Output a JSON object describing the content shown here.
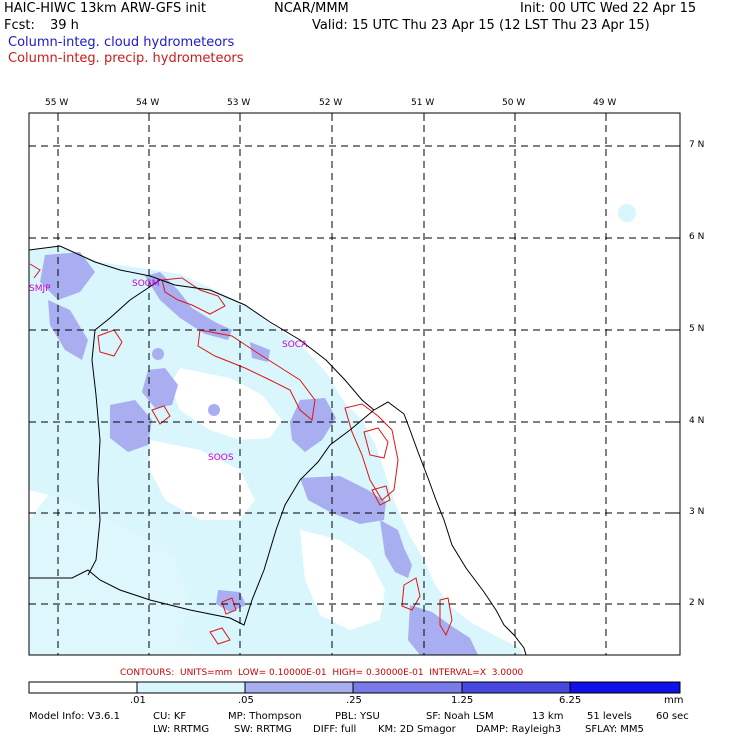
{
  "header": {
    "title_left": "HAIC-HIWC 13km ARW-GFS init",
    "org": "NCAR/MMM",
    "init": "Init: 00 UTC Wed 22 Apr 15",
    "fcst_label": "Fcst:",
    "fcst_value": "39 h",
    "valid": "Valid: 15 UTC Thu 23 Apr 15 (12 LST Thu 23 Apr 15)",
    "field1": "Column-integ. cloud hydrometeors",
    "field2": "Column-integ. precip. hydrometeors"
  },
  "map": {
    "longitude_labels": [
      "55 W",
      "54 W",
      "53 W",
      "52 W",
      "51 W",
      "50 W",
      "49 W"
    ],
    "latitude_labels": [
      "7 N",
      "6 N",
      "5 N",
      "4 N",
      "3 N",
      "2 N"
    ],
    "stations": [
      "SMJP",
      "SOGM",
      "SOCA",
      "SOOS"
    ]
  },
  "contours_line": "CONTOURS:  UNITS=mm  LOW= 0.10000E-01  HIGH= 0.30000E-01  INTERVAL=X  3.0000",
  "colorbar": {
    "labels": [
      ".01",
      ".05",
      ".25",
      "1.25",
      "6.25"
    ],
    "unit": "mm",
    "colors": [
      "#ffffff",
      "#d8f6fb",
      "#a8aef0",
      "#7a7ae8",
      "#4848e0",
      "#1010e8"
    ]
  },
  "footer": {
    "model_info": "Model Info: V3.6.1",
    "cu": "CU: KF",
    "mp": "MP: Thompson",
    "pbl": "PBL: YSU",
    "sf": "SF: Noah LSM",
    "res": "13 km",
    "levels": "51 levels",
    "dt": "60 sec",
    "lw": "LW: RRTMG",
    "sw": "SW: RRTMG",
    "diff": "DIFF: full",
    "km": "KM: 2D Smagor",
    "damp": "DAMP: Rayleigh3",
    "sflay": "SFLAY: MM5"
  }
}
